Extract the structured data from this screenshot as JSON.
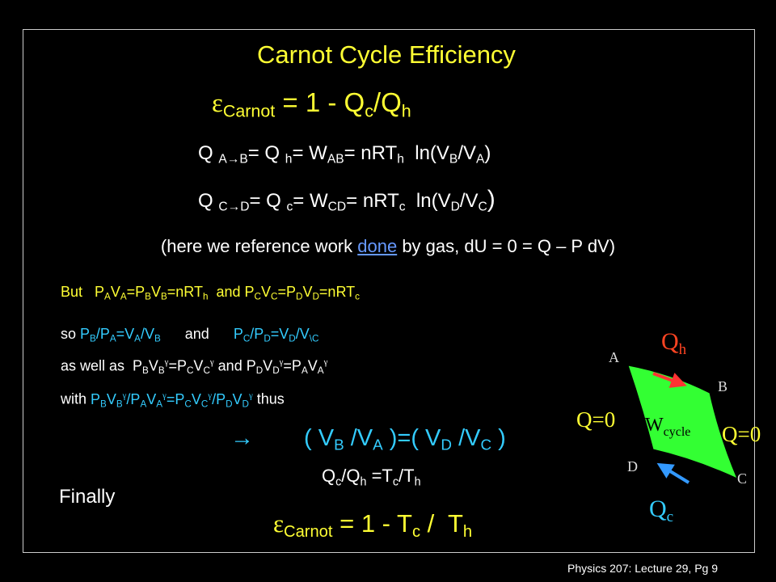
{
  "title": "Carnot Cycle Efficiency",
  "efficiency": [
    "ε",
    "Carnot",
    " = 1 - Q",
    "c",
    "/Q",
    "h"
  ],
  "eq_ab": [
    "Q ",
    "A→B",
    "= Q ",
    "h",
    "= W",
    "AB",
    "= nRT",
    "h",
    "  ln(V",
    "B",
    "/V",
    "A",
    ")"
  ],
  "eq_cd": [
    "Q ",
    "C→D",
    "= Q ",
    "c",
    "= W",
    "CD",
    "= nRT",
    "c",
    "  ln(V",
    "D",
    "/V",
    "C",
    ")"
  ],
  "note": [
    "(here we reference work ",
    "done",
    " by gas, dU = 0 = Q – P dV)"
  ],
  "but": [
    "But   P",
    "A",
    "V",
    "A",
    "=P",
    "B",
    "V",
    "B",
    "=nRT",
    "h",
    "  and P",
    "C",
    "V",
    "C",
    "=P",
    "D",
    "V",
    "D",
    "=nRT",
    "c"
  ],
  "so": [
    "so ",
    "P",
    "B",
    "/P",
    "A",
    "=V",
    "A",
    "/V",
    "B",
    "      and      ",
    "P",
    "C",
    "/P",
    "D",
    "=V",
    "D",
    "/V",
    "\\C"
  ],
  "as_well": [
    "as well as  P",
    "B",
    "V",
    "B",
    "γ",
    "=P",
    "C",
    "V",
    "C",
    "γ",
    " and P",
    "D",
    "V",
    "D",
    "γ",
    "=P",
    "A",
    "V",
    "A",
    "γ"
  ],
  "with": [
    "with ",
    "P",
    "B",
    "V",
    "B",
    "γ",
    "/P",
    "A",
    "V",
    "A",
    "γ",
    "=P",
    "C",
    "V",
    "C",
    "γ",
    "/P",
    "D",
    "V",
    "D",
    "γ",
    " thus"
  ],
  "ratio": [
    "→",
    "( V",
    "B",
    " /V",
    "A",
    " )=( V",
    "D",
    " /V",
    "C",
    " )"
  ],
  "heat_ratio": [
    "Q",
    "c",
    "/Q",
    "h",
    " =T",
    "c",
    "/T",
    "h"
  ],
  "finally": "Finally",
  "result": [
    "ε",
    "Carnot",
    " = 1 - T",
    "c",
    " /  T",
    "h"
  ],
  "diagram": {
    "qh": [
      "Q",
      "h"
    ],
    "qc": [
      "Q",
      "c"
    ],
    "q_left": "Q=0",
    "q_right": "Q=0",
    "work": [
      "W",
      "cycle"
    ],
    "points": [
      "A",
      "B",
      "C",
      "D"
    ]
  },
  "footer": "Physics 207: Lecture 29, Pg 9"
}
